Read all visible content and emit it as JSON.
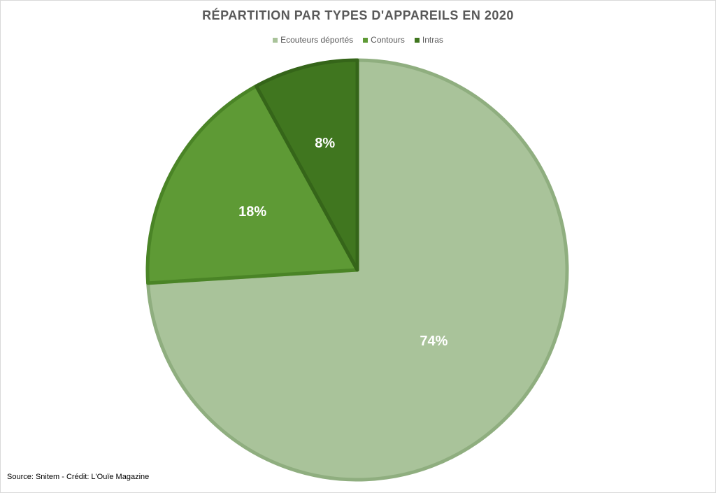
{
  "chart_data": {
    "type": "pie",
    "title": "RÉPARTITION PAR TYPES D'APPAREILS EN 2020",
    "legend_position": "top",
    "categories": [
      "Ecouteurs déportés",
      "Contours",
      "Intras"
    ],
    "values": [
      74,
      18,
      8
    ],
    "data_labels": [
      "74%",
      "18%",
      "8%"
    ],
    "colors": [
      "#a9c39a",
      "#5e9a35",
      "#40761f"
    ],
    "border_colors": [
      "#8fae7f",
      "#4a8426",
      "#356519"
    ]
  },
  "footer": {
    "source": "Source: Snitem - Crédit: L'Ouïe Magazine"
  }
}
